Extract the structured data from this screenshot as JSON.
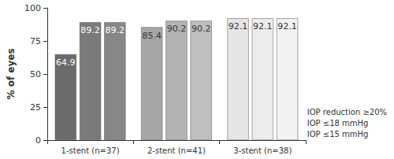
{
  "chart_data": {
    "type": "bar",
    "y_label": "% of eyes",
    "categories": [
      "1-stent (n=37)",
      "2-stent (n=41)",
      "3-stent (n=38)"
    ],
    "series": [
      {
        "name": "IOP ≤15 mmHg",
        "values": [
          64.9,
          85.4,
          92.1
        ],
        "colors": [
          "#6b6b6b",
          "#a6a6a6",
          "#e6e6e6"
        ]
      },
      {
        "name": "IOP ≤18 mmHg",
        "values": [
          89.2,
          90.2,
          92.1
        ],
        "colors": [
          "#7a7a7a",
          "#b3b3b3",
          "#ececec"
        ]
      },
      {
        "name": "IOP reduction ≥20%",
        "values": [
          89.2,
          90.2,
          92.1
        ],
        "colors": [
          "#878787",
          "#bfbfbf",
          "#f2f2f2"
        ]
      }
    ],
    "ylim": [
      0,
      100
    ],
    "yticks": [
      0,
      25,
      50,
      75,
      100
    ],
    "grid": false,
    "legend": "right",
    "data_labels": true
  }
}
